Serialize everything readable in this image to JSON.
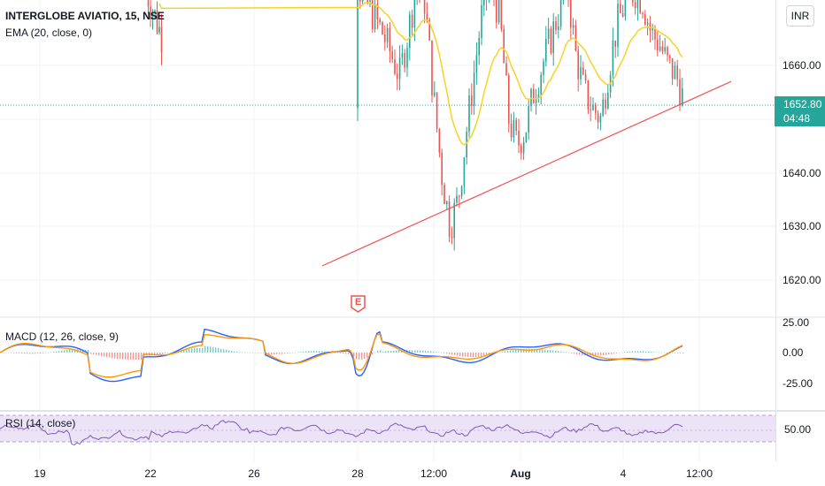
{
  "symbol_legend": "INTERGLOBE AVIATIO, 15, NSE",
  "ema_legend": "EMA (20, close, 0)",
  "macd_legend": "MACD (12, 26, close, 9)",
  "rsi_legend": "RSI (14, close)",
  "currency_button": "INR",
  "earnings_marker": "E",
  "last_price": {
    "value": "1652.80",
    "countdown": "04:48",
    "color": "#26a69a"
  },
  "colors": {
    "up": "#26a69a",
    "down": "#ef5350",
    "ema": "#f5d327",
    "macd": "#2962ff",
    "signal": "#ff9800",
    "rsi": "#7e57c2",
    "trendline": "#ef5350"
  },
  "price_axis": [
    "1660.00",
    "1650.00",
    "1640.00",
    "1630.00",
    "1620.00"
  ],
  "macd_axis": [
    "25.00",
    "0.00",
    "-25.00"
  ],
  "rsi_axis": [
    "50.00"
  ],
  "time_axis": [
    "19",
    "22",
    "26",
    "28",
    "12:00",
    "Aug",
    "4",
    "12:00"
  ],
  "chart_data": {
    "type": "line",
    "title": "INTERGLOBE AVIATIO, 15, NSE",
    "ylim": [
      1614,
      1680
    ],
    "trendline": {
      "from": {
        "x": "Jul 27",
        "y": 1622.5
      },
      "to": {
        "x": "Aug 5",
        "y": 1657
      }
    },
    "last_close": 1652.8,
    "approx_close_series": [
      1675,
      1672,
      1669,
      1666,
      1662,
      1658,
      1666,
      1675,
      1672,
      1655,
      1640,
      1630,
      1635,
      1648,
      1660,
      1672,
      1675,
      1668,
      1650,
      1645,
      1648,
      1655,
      1660,
      1665,
      1670,
      1675,
      1662,
      1655,
      1652,
      1650,
      1660,
      1668,
      1672,
      1674,
      1672,
      1666,
      1664,
      1660,
      1658,
      1652.8
    ]
  }
}
